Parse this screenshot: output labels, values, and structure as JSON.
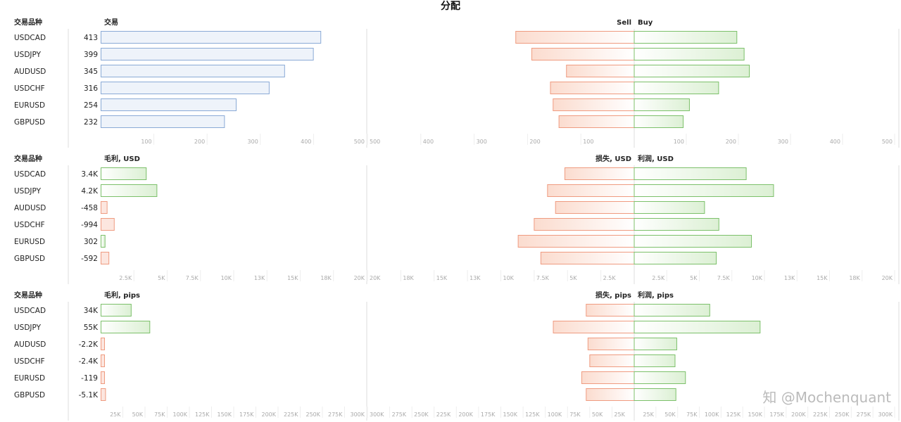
{
  "title": "分配",
  "watermark": "知 @Mochenquant",
  "colors": {
    "neutral_fill": "#eef3fa",
    "neutral_stroke": "#8aaad6",
    "pos_fill": "#e4f4de",
    "pos_stroke": "#7cc06a",
    "neg_fill": "#fce6df",
    "neg_stroke": "#ef9b80",
    "axis": "#dddddd",
    "tick_text": "#aaaaaa"
  },
  "chart_data": [
    {
      "type": "bar",
      "category_header": "交易品种",
      "categories": [
        "USDCAD",
        "USDJPY",
        "AUDUSD",
        "USDCHF",
        "EURUSD",
        "GBPUSD"
      ],
      "left": {
        "label": "交易",
        "values": [
          413,
          399,
          345,
          316,
          254,
          232
        ],
        "value_labels": [
          "413",
          "399",
          "345",
          "316",
          "254",
          "232"
        ],
        "max": 500,
        "ticks": [
          "100",
          "200",
          "300",
          "400",
          "500"
        ],
        "style": "neutral"
      },
      "right": {
        "neg_label": "Sell",
        "pos_label": "Buy",
        "neg_values": [
          222,
          192,
          127,
          157,
          152,
          141
        ],
        "pos_values": [
          197,
          211,
          221,
          162,
          106,
          94
        ],
        "max": 500,
        "neg_ticks": [
          "500",
          "400",
          "300",
          "200",
          "100"
        ],
        "pos_ticks": [
          "100",
          "200",
          "300",
          "400",
          "500"
        ]
      }
    },
    {
      "type": "bar",
      "category_header": "交易品种",
      "categories": [
        "USDCAD",
        "USDJPY",
        "AUDUSD",
        "USDCHF",
        "EURUSD",
        "GBPUSD"
      ],
      "left": {
        "label": "毛利, USD",
        "values": [
          3400,
          4200,
          -458,
          -994,
          302,
          -592
        ],
        "value_labels": [
          "3.4K",
          "4.2K",
          "-458",
          "-994",
          "302",
          "-592"
        ],
        "max": 20000,
        "ticks": [
          "2.5K",
          "5K",
          "7.5K",
          "10K",
          "13K",
          "15K",
          "18K",
          "20K"
        ],
        "style": "signed"
      },
      "right": {
        "neg_label": "损失, USD",
        "pos_label": "利润, USD",
        "neg_values": [
          5200,
          6500,
          5900,
          7500,
          8700,
          7000
        ],
        "pos_values": [
          8600,
          10700,
          5400,
          6500,
          9000,
          6300
        ],
        "max": 20000,
        "neg_ticks": [
          "20K",
          "18K",
          "15K",
          "13K",
          "10K",
          "7.5K",
          "5K",
          "2.5K"
        ],
        "pos_ticks": [
          "2.5K",
          "5K",
          "7.5K",
          "10K",
          "13K",
          "15K",
          "18K",
          "20K"
        ]
      }
    },
    {
      "type": "bar",
      "category_header": "交易品种",
      "categories": [
        "USDCAD",
        "USDJPY",
        "AUDUSD",
        "USDCHF",
        "EURUSD",
        "GBPUSD"
      ],
      "left": {
        "label": "毛利, pips",
        "values": [
          34000,
          55000,
          -2200,
          -2400,
          -119,
          -5100
        ],
        "value_labels": [
          "34K",
          "55K",
          "-2.2K",
          "-2.4K",
          "-119",
          "-5.1K"
        ],
        "max": 300000,
        "ticks": [
          "25K",
          "50K",
          "75K",
          "100K",
          "125K",
          "150K",
          "175K",
          "200K",
          "225K",
          "250K",
          "275K",
          "300K"
        ],
        "style": "signed"
      },
      "right": {
        "neg_label": "损失, pips",
        "pos_label": "利润, pips",
        "neg_values": [
          54000,
          91000,
          52000,
          50000,
          59000,
          54000
        ],
        "pos_values": [
          87000,
          145000,
          49000,
          47000,
          59000,
          48000
        ],
        "max": 300000,
        "neg_ticks": [
          "300K",
          "275K",
          "250K",
          "225K",
          "200K",
          "175K",
          "150K",
          "125K",
          "100K",
          "75K",
          "50K",
          "25K"
        ],
        "pos_ticks": [
          "25K",
          "50K",
          "75K",
          "100K",
          "125K",
          "150K",
          "175K",
          "200K",
          "225K",
          "250K",
          "275K",
          "300K"
        ]
      }
    }
  ]
}
